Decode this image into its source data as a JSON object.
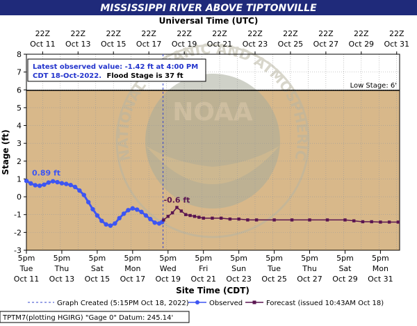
{
  "header": {
    "title": "MISSISSIPPI RIVER ABOVE TIPTONVILLE",
    "top_axis_title": "Universal Time (UTC)",
    "bottom_axis_title": "Site Time (CDT)",
    "footer_text": "TPTM7(plotting HGIRG) \"Gage 0\" Datum: 245.14'"
  },
  "colors": {
    "title_bar": "#1f2a7a",
    "plot_bg": "#d8b88a",
    "observed": "#3d55f2",
    "forecast": "#5a1550",
    "created_line": "#3344cc",
    "annotation_text": "#2233cc"
  },
  "annotation": {
    "line1": "Latest observed value: -1.42 ft at 4:00 PM",
    "line2_blue": "CDT 18-Oct-2022.",
    "line2_black": "Flood Stage is 37 ft"
  },
  "low_stage_label": "Low Stage: 6'",
  "legend": {
    "created": "Graph Created (5:15PM Oct 18, 2022)",
    "observed": "Observed",
    "forecast": "Forecast (issued 10:43AM Oct 18)"
  },
  "watermark": {
    "center": "NOAA",
    "ring_text": "NATIONAL OCEANIC AND ATMOSPHERIC ADMINISTRATION"
  },
  "chart_data": {
    "type": "line",
    "title": "MISSISSIPPI RIVER ABOVE TIPTONVILLE",
    "xlabel": "Site Time (CDT)",
    "ylabel": "Stage (ft)",
    "ylim": [
      -3,
      8
    ],
    "xlim": [
      "Oct 11 00:00",
      "Nov 1 02:00"
    ],
    "y_ticks": [
      -3,
      -2,
      -1,
      0,
      1,
      2,
      3,
      4,
      5,
      6,
      7,
      8
    ],
    "low_stage": 6,
    "flood_stage": 37,
    "graph_created": "Oct 18 17:15",
    "bottom_ticks": [
      {
        "l1": "5pm",
        "l2": "Tue",
        "l3": "Oct 11"
      },
      {
        "l1": "5pm",
        "l2": "Thu",
        "l3": "Oct 13"
      },
      {
        "l1": "5pm",
        "l2": "Sat",
        "l3": "Oct 15"
      },
      {
        "l1": "5pm",
        "l2": "Mon",
        "l3": "Oct 17"
      },
      {
        "l1": "5pm",
        "l2": "Wed",
        "l3": "Oct 19"
      },
      {
        "l1": "5pm",
        "l2": "Fri",
        "l3": "Oct 21"
      },
      {
        "l1": "5pm",
        "l2": "Sun",
        "l3": "Oct 23"
      },
      {
        "l1": "5pm",
        "l2": "Tue",
        "l3": "Oct 25"
      },
      {
        "l1": "5pm",
        "l2": "Thu",
        "l3": "Oct 27"
      },
      {
        "l1": "5pm",
        "l2": "Sat",
        "l3": "Oct 29"
      },
      {
        "l1": "5pm",
        "l2": "Mon",
        "l3": "Oct 31"
      }
    ],
    "top_ticks": [
      {
        "l1": "22Z",
        "l2": "Oct 11"
      },
      {
        "l1": "22Z",
        "l2": "Oct 13"
      },
      {
        "l1": "22Z",
        "l2": "Oct 15"
      },
      {
        "l1": "22Z",
        "l2": "Oct 17"
      },
      {
        "l1": "22Z",
        "l2": "Oct 19"
      },
      {
        "l1": "22Z",
        "l2": "Oct 21"
      },
      {
        "l1": "22Z",
        "l2": "Oct 23"
      },
      {
        "l1": "22Z",
        "l2": "Oct 25"
      },
      {
        "l1": "22Z",
        "l2": "Oct 27"
      },
      {
        "l1": "22Z",
        "l2": "Oct 29"
      },
      {
        "l1": "22Z",
        "l2": "Oct 31"
      }
    ],
    "series": [
      {
        "name": "Observed",
        "points": [
          [
            "Oct 11 00:00",
            0.89
          ],
          [
            "Oct 11 06:00",
            0.75
          ],
          [
            "Oct 11 12:00",
            0.65
          ],
          [
            "Oct 11 18:00",
            0.62
          ],
          [
            "Oct 12 00:00",
            0.68
          ],
          [
            "Oct 12 06:00",
            0.8
          ],
          [
            "Oct 12 12:00",
            0.87
          ],
          [
            "Oct 12 18:00",
            0.82
          ],
          [
            "Oct 13 00:00",
            0.76
          ],
          [
            "Oct 13 06:00",
            0.72
          ],
          [
            "Oct 13 12:00",
            0.66
          ],
          [
            "Oct 13 18:00",
            0.55
          ],
          [
            "Oct 14 00:00",
            0.35
          ],
          [
            "Oct 14 06:00",
            0.1
          ],
          [
            "Oct 14 12:00",
            -0.3
          ],
          [
            "Oct 14 18:00",
            -0.7
          ],
          [
            "Oct 15 00:00",
            -1.05
          ],
          [
            "Oct 15 06:00",
            -1.35
          ],
          [
            "Oct 15 12:00",
            -1.55
          ],
          [
            "Oct 15 18:00",
            -1.62
          ],
          [
            "Oct 16 00:00",
            -1.5
          ],
          [
            "Oct 16 06:00",
            -1.2
          ],
          [
            "Oct 16 12:00",
            -0.95
          ],
          [
            "Oct 16 18:00",
            -0.75
          ],
          [
            "Oct 17 00:00",
            -0.65
          ],
          [
            "Oct 17 06:00",
            -0.72
          ],
          [
            "Oct 17 12:00",
            -0.85
          ],
          [
            "Oct 17 18:00",
            -1.05
          ],
          [
            "Oct 18 00:00",
            -1.25
          ],
          [
            "Oct 18 06:00",
            -1.45
          ],
          [
            "Oct 18 12:00",
            -1.5
          ],
          [
            "Oct 18 16:00",
            -1.42
          ]
        ]
      },
      {
        "name": "Forecast (issued 10:43AM Oct 18)",
        "points": [
          [
            "Oct 18 18:00",
            -1.3
          ],
          [
            "Oct 19 00:00",
            -1.1
          ],
          [
            "Oct 19 06:00",
            -0.9
          ],
          [
            "Oct 19 12:00",
            -0.6
          ],
          [
            "Oct 19 18:00",
            -0.8
          ],
          [
            "Oct 20 00:00",
            -1.0
          ],
          [
            "Oct 20 06:00",
            -1.05
          ],
          [
            "Oct 20 12:00",
            -1.1
          ],
          [
            "Oct 20 18:00",
            -1.15
          ],
          [
            "Oct 21 00:00",
            -1.2
          ],
          [
            "Oct 21 12:00",
            -1.2
          ],
          [
            "Oct 22 00:00",
            -1.2
          ],
          [
            "Oct 22 12:00",
            -1.25
          ],
          [
            "Oct 23 00:00",
            -1.25
          ],
          [
            "Oct 23 12:00",
            -1.3
          ],
          [
            "Oct 24 00:00",
            -1.3
          ],
          [
            "Oct 25 00:00",
            -1.3
          ],
          [
            "Oct 26 00:00",
            -1.3
          ],
          [
            "Oct 27 00:00",
            -1.3
          ],
          [
            "Oct 28 00:00",
            -1.3
          ],
          [
            "Oct 29 00:00",
            -1.3
          ],
          [
            "Oct 29 12:00",
            -1.35
          ],
          [
            "Oct 30 00:00",
            -1.4
          ],
          [
            "Oct 30 12:00",
            -1.4
          ],
          [
            "Oct 31 00:00",
            -1.42
          ],
          [
            "Oct 31 12:00",
            -1.42
          ],
          [
            "Nov 1 00:00",
            -1.42
          ]
        ]
      }
    ],
    "labels": [
      {
        "text": "0.89 ft",
        "series": "Observed"
      },
      {
        "text": "-0.6 ft",
        "series": "Forecast (issued 10:43AM Oct 18)"
      }
    ]
  }
}
